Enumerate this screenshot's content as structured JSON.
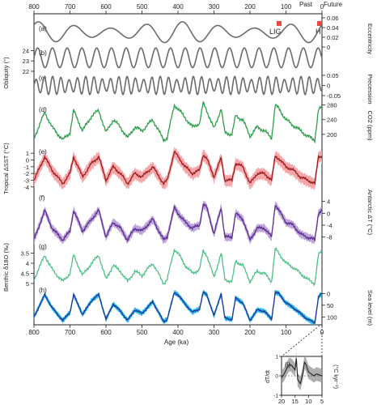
{
  "figure": {
    "top_axis": {
      "ticks": [
        "800",
        "700",
        "600",
        "500",
        "400",
        "300",
        "200",
        "100",
        "0"
      ],
      "past_label": "Past",
      "future_label": "Future"
    },
    "bottom_axis": {
      "ticks": [
        "800",
        "700",
        "600",
        "500",
        "400",
        "300",
        "200",
        "100",
        "0"
      ],
      "label": "Age (ka)"
    },
    "markers": {
      "lig": "LIG",
      "h": "H"
    },
    "colors": {
      "orbital": "#6b6b6b",
      "co2": "#2e9e4a",
      "sst_dark": "#9b1c1c",
      "sst_light": "#f59ca0",
      "ant_dark": "#5b2e91",
      "ant_light": "#b79ad6",
      "benthic": "#4fbf85",
      "sea_dark": "#1f3c9a",
      "sea_light": "#24b6ec",
      "marker": "#e9493f",
      "inset_band": "#9a9a9a"
    }
  },
  "chart_data": [
    {
      "panel": "a",
      "type": "line",
      "ylabel": "Eccentricity",
      "ytick_labels": [
        "0",
        "0.02",
        "0.04",
        "0.06"
      ],
      "ylim": [
        0,
        0.06
      ],
      "period_ka": 100,
      "approx_range": [
        0.005,
        0.055
      ]
    },
    {
      "panel": "b",
      "type": "line",
      "ylabel": "Obliquity (°)",
      "ytick_labels": [
        "22",
        "23",
        "24"
      ],
      "ylim": [
        22,
        24.5
      ],
      "period_ka": 41,
      "approx_range": [
        22.3,
        24.3
      ]
    },
    {
      "panel": "c",
      "type": "line",
      "ylabel": "Precession",
      "ytick_labels": [
        "-0.05",
        "0",
        "0.05"
      ],
      "ylim": [
        -0.05,
        0.05
      ],
      "period_ka": 23
    },
    {
      "panel": "d",
      "type": "line",
      "ylabel": "CO2 (ppm)",
      "ytick_labels": [
        "200",
        "240",
        "280"
      ],
      "ylim": [
        180,
        290
      ],
      "x": [
        800,
        770,
        750,
        720,
        700,
        690,
        665,
        640,
        620,
        600,
        580,
        560,
        540,
        520,
        500,
        470,
        440,
        430,
        410,
        400,
        380,
        360,
        340,
        330,
        320,
        300,
        280,
        270,
        250,
        240,
        220,
        200,
        180,
        160,
        140,
        130,
        120,
        100,
        80,
        60,
        40,
        20,
        10,
        0
      ],
      "values": [
        190,
        260,
        220,
        185,
        205,
        265,
        210,
        250,
        265,
        205,
        240,
        220,
        190,
        220,
        210,
        240,
        185,
        190,
        280,
        270,
        245,
        220,
        230,
        285,
        265,
        215,
        270,
        205,
        200,
        250,
        240,
        195,
        220,
        210,
        190,
        280,
        270,
        240,
        225,
        210,
        195,
        185,
        265,
        275
      ]
    },
    {
      "panel": "e",
      "type": "area",
      "ylabel": "Tropical ΔSST (°C)",
      "ytick_labels": [
        "1",
        "0",
        "-1",
        "-2",
        "-3",
        "-4"
      ],
      "ylim": [
        -4.5,
        1.5
      ],
      "x": [
        800,
        770,
        750,
        720,
        700,
        690,
        665,
        640,
        620,
        600,
        580,
        560,
        540,
        520,
        500,
        470,
        440,
        430,
        410,
        400,
        380,
        360,
        340,
        330,
        320,
        300,
        280,
        270,
        250,
        240,
        220,
        200,
        180,
        160,
        140,
        130,
        120,
        100,
        80,
        60,
        40,
        20,
        10,
        0
      ],
      "series": [
        {
          "values": [
            -3,
            0.5,
            -1.5,
            -3.5,
            -2,
            0.5,
            -2.5,
            -0.5,
            0.5,
            -3,
            -1,
            -2,
            -3.5,
            -2,
            -2.5,
            -1,
            -3.5,
            -3,
            1.2,
            0.5,
            -1,
            -2,
            -1.5,
            0.8,
            0.2,
            -2.5,
            0.3,
            -3,
            -3,
            -0.5,
            -1,
            -3.5,
            -2,
            -2,
            -3,
            0.6,
            0.2,
            -1,
            -1.5,
            -2.5,
            -3,
            -3.5,
            0.5,
            0.6
          ]
        }
      ]
    },
    {
      "panel": "f",
      "type": "area",
      "ylabel": "Antarctic ΔT (°C)",
      "ytick_labels": [
        "4",
        "0",
        "-4",
        "-8"
      ],
      "ylim": [
        -10,
        5
      ],
      "x": [
        800,
        770,
        750,
        720,
        700,
        690,
        665,
        640,
        620,
        600,
        580,
        560,
        540,
        520,
        500,
        470,
        440,
        430,
        410,
        400,
        380,
        360,
        340,
        330,
        320,
        300,
        280,
        270,
        250,
        240,
        220,
        200,
        180,
        160,
        140,
        130,
        120,
        100,
        80,
        60,
        40,
        20,
        10,
        0
      ],
      "series": [
        {
          "values": [
            -9,
            1,
            -5,
            -9,
            -6,
            1,
            -6,
            -2,
            1,
            -8,
            -3,
            -5,
            -9,
            -5,
            -6,
            -2,
            -9,
            -8,
            2,
            0,
            -3,
            -5,
            -4,
            3,
            2,
            -7,
            2,
            -8,
            -8,
            0,
            -2,
            -9,
            -5,
            -5,
            -8,
            3,
            1,
            -3,
            -4,
            -7,
            -8,
            -9,
            0,
            1
          ]
        }
      ]
    },
    {
      "panel": "g",
      "type": "line",
      "ylabel": "Benthic δ18O (‰)",
      "ytick_labels": [
        "3.5",
        "4",
        "4.5",
        "5"
      ],
      "ylim": [
        5.2,
        3.2
      ],
      "x": [
        800,
        770,
        750,
        720,
        700,
        690,
        665,
        640,
        620,
        600,
        580,
        560,
        540,
        520,
        500,
        470,
        440,
        430,
        410,
        400,
        380,
        360,
        340,
        330,
        320,
        300,
        280,
        270,
        250,
        240,
        220,
        200,
        180,
        160,
        140,
        130,
        120,
        100,
        80,
        60,
        40,
        20,
        10,
        0
      ],
      "values": [
        4.8,
        3.6,
        4.3,
        4.9,
        4.5,
        3.6,
        4.6,
        4.0,
        3.6,
        4.8,
        4.1,
        4.4,
        4.9,
        4.4,
        4.6,
        4.0,
        5.0,
        4.8,
        3.3,
        3.5,
        4.1,
        4.5,
        4.3,
        3.4,
        3.6,
        4.7,
        3.5,
        4.8,
        4.9,
        3.9,
        4.1,
        4.9,
        4.4,
        4.5,
        4.9,
        3.3,
        3.5,
        4.0,
        4.2,
        4.5,
        4.8,
        5.0,
        3.6,
        3.4
      ]
    },
    {
      "panel": "h",
      "type": "area",
      "ylabel": "Sea level (m)",
      "ytick_labels": [
        "0",
        "50",
        "100"
      ],
      "ylim": [
        130,
        -15
      ],
      "x": [
        800,
        770,
        750,
        720,
        700,
        690,
        665,
        640,
        620,
        600,
        580,
        560,
        540,
        520,
        500,
        470,
        440,
        430,
        410,
        400,
        380,
        360,
        340,
        330,
        320,
        300,
        280,
        270,
        250,
        240,
        220,
        200,
        180,
        160,
        140,
        130,
        120,
        100,
        80,
        60,
        40,
        20,
        10,
        0
      ],
      "series": [
        {
          "values": [
            100,
            5,
            60,
            115,
            80,
            5,
            90,
            30,
            5,
            110,
            45,
            75,
            115,
            70,
            85,
            35,
            120,
            110,
            -5,
            5,
            45,
            80,
            65,
            -5,
            5,
            95,
            0,
            105,
            110,
            20,
            40,
            115,
            70,
            75,
            110,
            -5,
            0,
            40,
            60,
            85,
            110,
            125,
            15,
            0
          ]
        }
      ]
    },
    {
      "panel": "i",
      "type": "area",
      "ylabel": "dT/dt (°C kyr⁻¹)",
      "xlabel": "",
      "x_tick_labels": [
        "20",
        "15",
        "10",
        "5"
      ],
      "y_tick_labels": [
        "-1",
        "0",
        "1"
      ],
      "ylim": [
        -1,
        1
      ],
      "x": [
        20,
        19,
        18,
        17,
        16,
        15,
        14.5,
        14,
        13,
        12,
        11.5,
        11,
        10,
        9,
        8,
        7,
        6,
        5
      ],
      "values": [
        -0.1,
        0.1,
        0.4,
        0.6,
        0.5,
        0.3,
        0.9,
        -0.2,
        -0.4,
        0.2,
        0.7,
        0.6,
        0.2,
        0.1,
        0.0,
        0.1,
        0.05,
        0.0
      ]
    }
  ]
}
